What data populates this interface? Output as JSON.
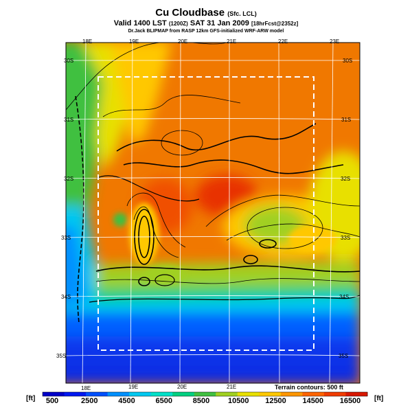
{
  "title": {
    "main": "Cu Cloudbase",
    "main_suffix": "(Sfc. LCL)",
    "valid": "Valid 1400 LST",
    "valid_code": "(1200Z)",
    "date": "SAT 31 Jan 2009",
    "forecast": "[18hrFcst@2352z]",
    "credit": "Dr.Jack BLIPMAP from RASP 12km GFS-initialized WRF-ARW model"
  },
  "map": {
    "lon_labels_top": [
      "18E",
      "19E",
      "20E",
      "21E",
      "22E",
      "23E"
    ],
    "lon_labels_bottom": [
      "18E",
      "19E",
      "20E",
      "21E"
    ],
    "lat_labels_left": [
      "30S",
      "31S",
      "32S",
      "33S",
      "34S",
      "35S"
    ],
    "lat_labels_right": [
      "30S",
      "31S",
      "32S",
      "33S",
      "34S",
      "35S"
    ],
    "terrain_note": "Terrain contours: 500 ft"
  },
  "colorbar": {
    "unit_left": "[ft]",
    "unit_right": "[ft]",
    "tick_labels": [
      "500",
      "2500",
      "4500",
      "6500",
      "8500",
      "10500",
      "12500",
      "14500",
      "16500"
    ],
    "colors": [
      "#0000c8",
      "#0018f0",
      "#0050ff",
      "#0090ff",
      "#00c8f0",
      "#00e0c8",
      "#00d080",
      "#40c040",
      "#a0d020",
      "#e8e000",
      "#ffc800",
      "#ff9600",
      "#ff6400",
      "#f03c00",
      "#d81800"
    ]
  }
}
